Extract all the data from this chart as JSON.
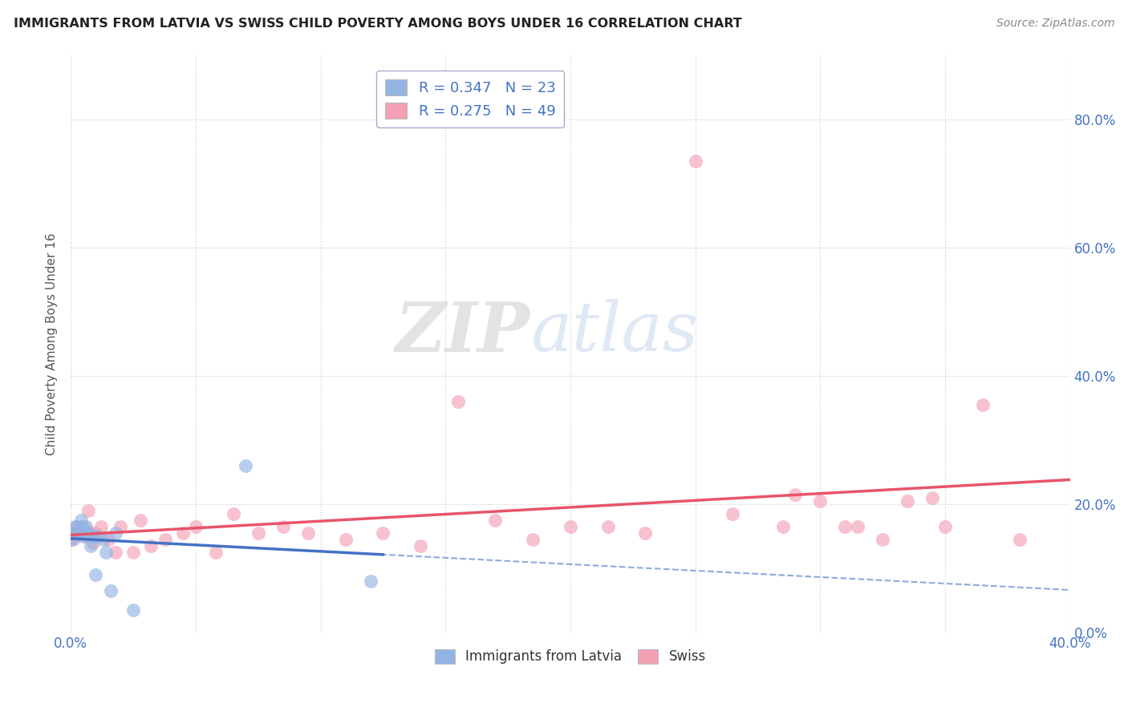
{
  "title": "IMMIGRANTS FROM LATVIA VS SWISS CHILD POVERTY AMONG BOYS UNDER 16 CORRELATION CHART",
  "source": "Source: ZipAtlas.com",
  "ylabel": "Child Poverty Among Boys Under 16",
  "xlim": [
    0.0,
    0.4
  ],
  "ylim": [
    0.0,
    0.9
  ],
  "ytick_vals": [
    0.0,
    0.2,
    0.4,
    0.6,
    0.8
  ],
  "ytick_labels": [
    "0.0%",
    "20.0%",
    "40.0%",
    "60.0%",
    "80.0%"
  ],
  "xtick_vals": [
    0.0,
    0.05,
    0.1,
    0.15,
    0.2,
    0.25,
    0.3,
    0.35,
    0.4
  ],
  "xtick_labels": [
    "0.0%",
    "",
    "",
    "",
    "",
    "",
    "",
    "",
    "40.0%"
  ],
  "legend_labels": [
    "Immigrants from Latvia",
    "Swiss"
  ],
  "blue_color": "#92b4e3",
  "pink_color": "#f4a0b5",
  "blue_line_color": "#4472c4",
  "pink_line_color": "#e8546a",
  "blue_r": 0.347,
  "blue_n": 23,
  "pink_r": 0.275,
  "pink_n": 49,
  "tick_color": "#4472c4",
  "watermark_zip": "ZIP",
  "watermark_atlas": "atlas",
  "background_color": "#ffffff",
  "blue_x": [
    0.001,
    0.002,
    0.002,
    0.003,
    0.003,
    0.004,
    0.004,
    0.005,
    0.005,
    0.006,
    0.006,
    0.007,
    0.008,
    0.009,
    0.01,
    0.011,
    0.013,
    0.014,
    0.016,
    0.018,
    0.025,
    0.07,
    0.12
  ],
  "blue_y": [
    0.145,
    0.155,
    0.165,
    0.155,
    0.165,
    0.165,
    0.175,
    0.15,
    0.16,
    0.155,
    0.165,
    0.155,
    0.135,
    0.15,
    0.09,
    0.15,
    0.145,
    0.125,
    0.065,
    0.155,
    0.035,
    0.26,
    0.08
  ],
  "pink_x": [
    0.0,
    0.001,
    0.002,
    0.002,
    0.003,
    0.004,
    0.005,
    0.006,
    0.007,
    0.008,
    0.009,
    0.01,
    0.012,
    0.015,
    0.018,
    0.02,
    0.025,
    0.028,
    0.032,
    0.038,
    0.045,
    0.05,
    0.058,
    0.065,
    0.075,
    0.085,
    0.095,
    0.11,
    0.125,
    0.14,
    0.155,
    0.17,
    0.185,
    0.2,
    0.215,
    0.23,
    0.25,
    0.265,
    0.285,
    0.3,
    0.315,
    0.335,
    0.35,
    0.365,
    0.38,
    0.29,
    0.31,
    0.325,
    0.345
  ],
  "pink_y": [
    0.145,
    0.155,
    0.15,
    0.165,
    0.155,
    0.155,
    0.165,
    0.15,
    0.19,
    0.155,
    0.14,
    0.155,
    0.165,
    0.145,
    0.125,
    0.165,
    0.125,
    0.175,
    0.135,
    0.145,
    0.155,
    0.165,
    0.125,
    0.185,
    0.155,
    0.165,
    0.155,
    0.145,
    0.155,
    0.135,
    0.36,
    0.175,
    0.145,
    0.165,
    0.165,
    0.155,
    0.735,
    0.185,
    0.165,
    0.205,
    0.165,
    0.205,
    0.165,
    0.355,
    0.145,
    0.215,
    0.165,
    0.145,
    0.21
  ]
}
